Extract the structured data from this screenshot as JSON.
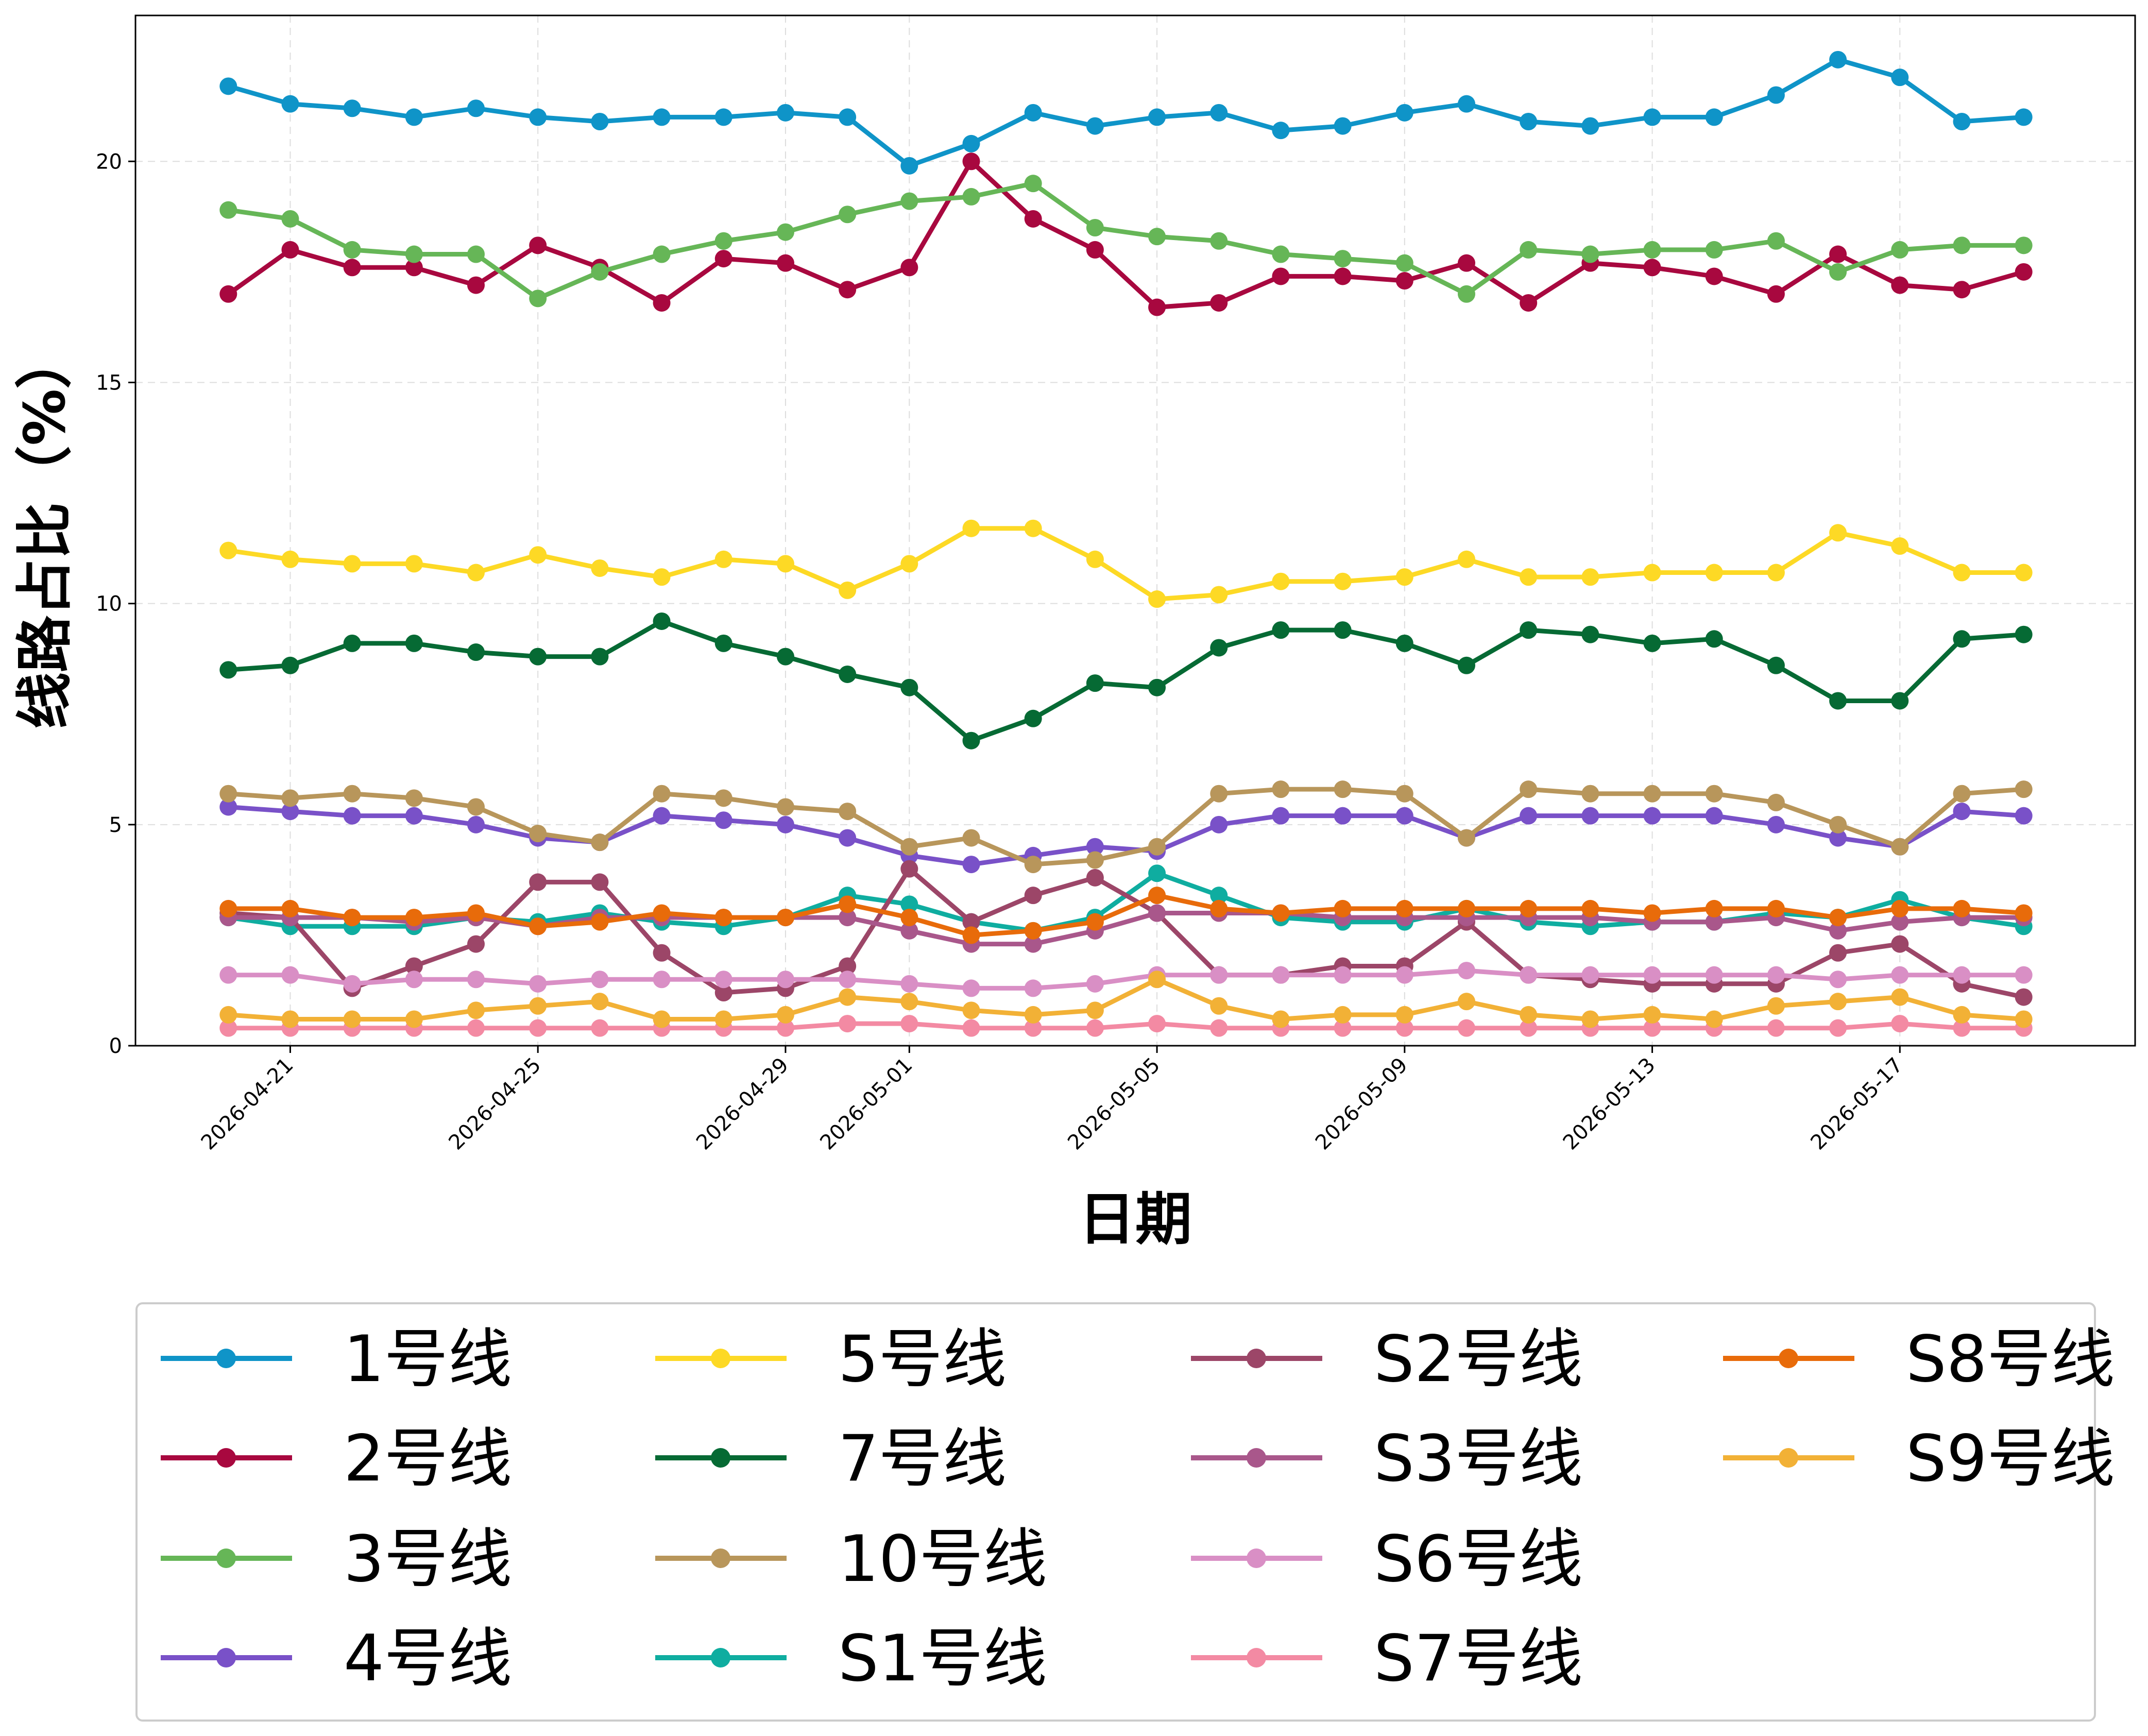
{
  "chart_data": {
    "type": "line",
    "title": "",
    "xlabel": "日期",
    "ylabel": "线路占比（%）",
    "ylim": [
      0,
      23.3
    ],
    "yticks": [
      0,
      5,
      10,
      15,
      20
    ],
    "x": [
      "2026-04-20",
      "2026-04-21",
      "2026-04-22",
      "2026-04-23",
      "2026-04-24",
      "2026-04-25",
      "2026-04-26",
      "2026-04-27",
      "2026-04-28",
      "2026-04-29",
      "2026-04-30",
      "2026-05-01",
      "2026-05-02",
      "2026-05-03",
      "2026-05-04",
      "2026-05-05",
      "2026-05-06",
      "2026-05-07",
      "2026-05-08",
      "2026-05-09",
      "2026-05-10",
      "2026-05-11",
      "2026-05-12",
      "2026-05-13",
      "2026-05-14",
      "2026-05-15",
      "2026-05-16",
      "2026-05-17",
      "2026-05-18",
      "2026-05-19"
    ],
    "xticks": [
      "2026-04-21",
      "2026-04-25",
      "2026-04-29",
      "2026-05-01",
      "2026-05-05",
      "2026-05-09",
      "2026-05-13",
      "2026-05-17"
    ],
    "grid": true,
    "legend": "bottom, 4 columns",
    "series": [
      {
        "name": "1号线",
        "color": "#0f94c8",
        "values": [
          21.7,
          21.3,
          21.2,
          21.0,
          21.2,
          21.0,
          20.9,
          21.0,
          21.0,
          21.1,
          21.0,
          19.9,
          20.4,
          21.1,
          20.8,
          21.0,
          21.1,
          20.7,
          20.8,
          21.1,
          21.3,
          20.9,
          20.8,
          21.0,
          21.0,
          21.5,
          22.3,
          21.9,
          20.9,
          21.0
        ]
      },
      {
        "name": "2号线",
        "color": "#a8083f",
        "values": [
          17.0,
          18.0,
          17.6,
          17.6,
          17.2,
          18.1,
          17.6,
          16.8,
          17.8,
          17.7,
          17.1,
          17.6,
          20.0,
          18.7,
          18.0,
          16.7,
          16.8,
          17.4,
          17.4,
          17.3,
          17.7,
          16.8,
          17.7,
          17.6,
          17.4,
          17.0,
          17.9,
          17.2,
          17.1,
          17.5
        ]
      },
      {
        "name": "3号线",
        "color": "#66b657",
        "values": [
          18.9,
          18.7,
          18.0,
          17.9,
          17.9,
          16.9,
          17.5,
          17.9,
          18.2,
          18.4,
          18.8,
          19.1,
          19.2,
          19.5,
          18.5,
          18.3,
          18.2,
          17.9,
          17.8,
          17.7,
          17.0,
          18.0,
          17.9,
          18.0,
          18.0,
          18.2,
          17.5,
          18.0,
          18.1,
          18.1
        ]
      },
      {
        "name": "4号线",
        "color": "#7951c8",
        "values": [
          5.4,
          5.3,
          5.2,
          5.2,
          5.0,
          4.7,
          4.6,
          5.2,
          5.1,
          5.0,
          4.7,
          4.3,
          4.1,
          4.3,
          4.5,
          4.4,
          5.0,
          5.2,
          5.2,
          5.2,
          4.7,
          5.2,
          5.2,
          5.2,
          5.2,
          5.0,
          4.7,
          4.5,
          5.3,
          5.2
        ]
      },
      {
        "name": "5号线",
        "color": "#fdd925",
        "values": [
          11.2,
          11.0,
          10.9,
          10.9,
          10.7,
          11.1,
          10.8,
          10.6,
          11.0,
          10.9,
          10.3,
          10.9,
          11.7,
          11.7,
          11.0,
          10.1,
          10.2,
          10.5,
          10.5,
          10.6,
          11.0,
          10.6,
          10.6,
          10.7,
          10.7,
          10.7,
          11.6,
          11.3,
          10.7,
          10.7
        ]
      },
      {
        "name": "7号线",
        "color": "#066a34",
        "values": [
          8.5,
          8.6,
          9.1,
          9.1,
          8.9,
          8.8,
          8.8,
          9.6,
          9.1,
          8.8,
          8.4,
          8.1,
          6.9,
          7.4,
          8.2,
          8.1,
          9.0,
          9.4,
          9.4,
          9.1,
          8.6,
          9.4,
          9.3,
          9.1,
          9.2,
          8.6,
          7.8,
          7.8,
          9.2,
          9.3
        ]
      },
      {
        "name": "10号线",
        "color": "#b8965b",
        "values": [
          5.7,
          5.6,
          5.7,
          5.6,
          5.4,
          4.8,
          4.6,
          5.7,
          5.6,
          5.4,
          5.3,
          4.5,
          4.7,
          4.1,
          4.2,
          4.5,
          5.7,
          5.8,
          5.8,
          5.7,
          4.7,
          5.8,
          5.7,
          5.7,
          5.7,
          5.5,
          5.0,
          4.5,
          5.7,
          5.8
        ]
      },
      {
        "name": "S1号线",
        "color": "#0fada0",
        "values": [
          2.9,
          2.7,
          2.7,
          2.7,
          2.9,
          2.8,
          3.0,
          2.8,
          2.7,
          2.9,
          3.4,
          3.2,
          2.8,
          2.6,
          2.9,
          3.9,
          3.4,
          2.9,
          2.8,
          2.8,
          3.1,
          2.8,
          2.7,
          2.8,
          2.8,
          3.0,
          2.9,
          3.3,
          2.9,
          2.7
        ]
      },
      {
        "name": "S2号线",
        "color": "#9c4668",
        "values": [
          3.0,
          2.9,
          1.3,
          1.8,
          2.3,
          3.7,
          3.7,
          2.1,
          1.2,
          1.3,
          1.8,
          4.0,
          2.8,
          3.4,
          3.8,
          3.0,
          1.6,
          1.6,
          1.8,
          1.8,
          2.8,
          1.6,
          1.5,
          1.4,
          1.4,
          1.4,
          2.1,
          2.3,
          1.4,
          1.1
        ]
      },
      {
        "name": "S3号线",
        "color": "#a9578b",
        "values": [
          2.9,
          2.9,
          2.9,
          2.8,
          2.9,
          2.7,
          2.9,
          2.9,
          2.9,
          2.9,
          2.9,
          2.6,
          2.3,
          2.3,
          2.6,
          3.0,
          3.0,
          3.0,
          2.9,
          2.9,
          2.9,
          2.9,
          2.9,
          2.8,
          2.8,
          2.9,
          2.6,
          2.8,
          2.9,
          2.9
        ]
      },
      {
        "name": "S6号线",
        "color": "#d98fc5",
        "values": [
          1.6,
          1.6,
          1.4,
          1.5,
          1.5,
          1.4,
          1.5,
          1.5,
          1.5,
          1.5,
          1.5,
          1.4,
          1.3,
          1.3,
          1.4,
          1.6,
          1.6,
          1.6,
          1.6,
          1.6,
          1.7,
          1.6,
          1.6,
          1.6,
          1.6,
          1.6,
          1.5,
          1.6,
          1.6,
          1.6
        ]
      },
      {
        "name": "S7号线",
        "color": "#f38aa3",
        "values": [
          0.4,
          0.4,
          0.4,
          0.4,
          0.4,
          0.4,
          0.4,
          0.4,
          0.4,
          0.4,
          0.5,
          0.5,
          0.4,
          0.4,
          0.4,
          0.5,
          0.4,
          0.4,
          0.4,
          0.4,
          0.4,
          0.4,
          0.4,
          0.4,
          0.4,
          0.4,
          0.4,
          0.5,
          0.4,
          0.4
        ]
      },
      {
        "name": "S8号线",
        "color": "#e86b0a",
        "values": [
          3.1,
          3.1,
          2.9,
          2.9,
          3.0,
          2.7,
          2.8,
          3.0,
          2.9,
          2.9,
          3.2,
          2.9,
          2.5,
          2.6,
          2.8,
          3.4,
          3.1,
          3.0,
          3.1,
          3.1,
          3.1,
          3.1,
          3.1,
          3.0,
          3.1,
          3.1,
          2.9,
          3.1,
          3.1,
          3.0
        ]
      },
      {
        "name": "S9号线",
        "color": "#f2b136",
        "values": [
          0.7,
          0.6,
          0.6,
          0.6,
          0.8,
          0.9,
          1.0,
          0.6,
          0.6,
          0.7,
          1.1,
          1.0,
          0.8,
          0.7,
          0.8,
          1.5,
          0.9,
          0.6,
          0.7,
          0.7,
          1.0,
          0.7,
          0.6,
          0.7,
          0.6,
          0.9,
          1.0,
          1.1,
          0.7,
          0.6
        ]
      }
    ]
  }
}
